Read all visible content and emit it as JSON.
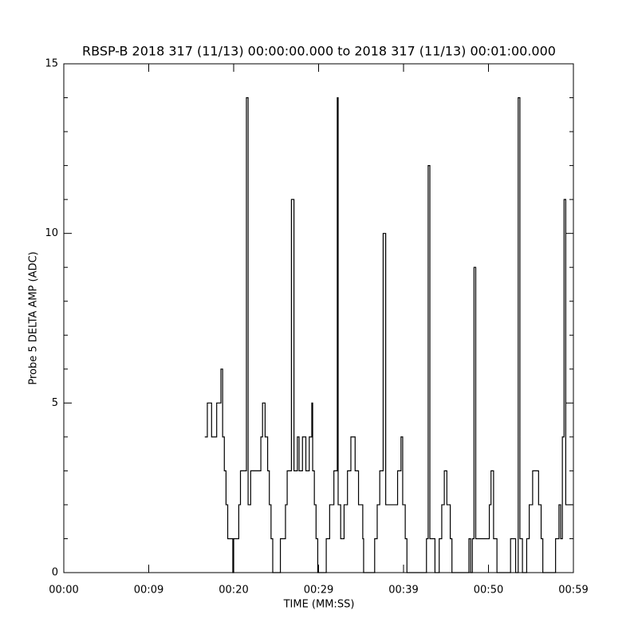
{
  "chart_data": {
    "type": "line",
    "title": "RBSP-B 2018 317 (11/13) 00:00:00.000 to 2018 317 (11/13) 00:01:00.000",
    "x_label": "TIME (MM:SS)",
    "y_label": "Probe 5 DELTA AMP (ADC)",
    "xlim": [
      0,
      60
    ],
    "xticks": [
      {
        "value": 0,
        "label": "00:00"
      },
      {
        "value": 10,
        "label": "00:09"
      },
      {
        "value": 20,
        "label": "00:20"
      },
      {
        "value": 30,
        "label": "00:29"
      },
      {
        "value": 40,
        "label": "00:39"
      },
      {
        "value": 50,
        "label": "00:50"
      },
      {
        "value": 60,
        "label": "00:59"
      }
    ],
    "ylim": [
      0,
      15
    ],
    "yticks": [
      0,
      5,
      10,
      15
    ],
    "yminor": [
      1,
      2,
      3,
      4,
      6,
      7,
      8,
      9,
      11,
      12,
      13,
      14
    ],
    "step": true,
    "color": "#000000",
    "x": [
      16.6,
      16.9,
      17.2,
      17.4,
      17.8,
      18.0,
      18.4,
      18.5,
      18.7,
      18.9,
      19.1,
      19.3,
      19.7,
      19.9,
      20.0,
      20.4,
      20.6,
      20.8,
      21.2,
      21.5,
      21.7,
      22.0,
      22.9,
      23.2,
      23.4,
      23.7,
      24.0,
      24.2,
      24.4,
      24.6,
      25.3,
      25.5,
      26.1,
      26.3,
      26.8,
      27.1,
      27.5,
      27.7,
      28.1,
      28.5,
      28.9,
      29.2,
      29.3,
      29.5,
      29.7,
      29.9,
      30.9,
      31.3,
      31.8,
      32.2,
      32.3,
      32.6,
      33.0,
      33.4,
      33.8,
      34.3,
      34.7,
      35.2,
      35.3,
      36.6,
      36.9,
      37.2,
      37.6,
      37.9,
      39.0,
      39.3,
      39.7,
      39.9,
      40.2,
      40.4,
      42.7,
      42.9,
      43.1,
      43.7,
      44.2,
      44.5,
      44.8,
      45.1,
      45.5,
      45.7,
      47.7,
      47.9,
      48.1,
      48.3,
      48.5,
      49.9,
      50.1,
      50.3,
      50.6,
      51.0,
      52.6,
      53.0,
      53.2,
      53.5,
      53.7,
      54.0,
      54.5,
      54.8,
      55.2,
      55.6,
      55.9,
      56.2,
      56.4,
      57.8,
      57.9,
      58.3,
      58.5,
      58.7,
      58.9,
      59.1,
      59.4,
      59.9
    ],
    "values": [
      4,
      5,
      5,
      4,
      4,
      5,
      5,
      6,
      4,
      3,
      2,
      1,
      1,
      0,
      1,
      1,
      2,
      3,
      3,
      14,
      2,
      3,
      3,
      4,
      5,
      4,
      3,
      2,
      1,
      0,
      0,
      1,
      2,
      3,
      11,
      3,
      4,
      3,
      4,
      3,
      4,
      5,
      3,
      2,
      1,
      0,
      1,
      2,
      3,
      14,
      2,
      1,
      2,
      3,
      4,
      3,
      2,
      1,
      0,
      1,
      2,
      3,
      10,
      2,
      2,
      3,
      4,
      2,
      1,
      0,
      1,
      12,
      1,
      0,
      1,
      2,
      3,
      2,
      1,
      0,
      1,
      0,
      1,
      9,
      1,
      1,
      2,
      3,
      1,
      0,
      1,
      1,
      0,
      14,
      1,
      0,
      1,
      2,
      3,
      3,
      2,
      1,
      0,
      0,
      1,
      2,
      1,
      4,
      11,
      2,
      2,
      2
    ]
  }
}
